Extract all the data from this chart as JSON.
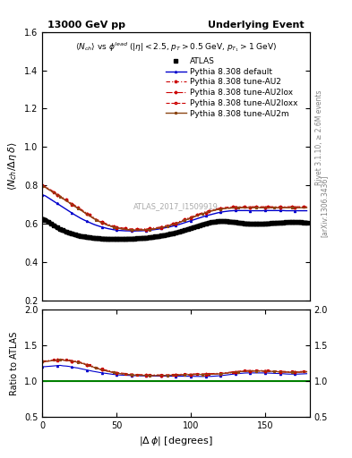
{
  "title_left": "13000 GeV pp",
  "title_right": "Underlying Event",
  "plot_title": "<N_{ch}> vs \\phi^{lead} (|\\eta| < 2.5, p_{T} > 0.5 GeV, p_{T_1} > 1 GeV)",
  "xlabel": "|\\Delta \\phi| [degrees]",
  "ylabel_main": "\\langle N_{ch} / \\Delta\\eta\\,d\\rangle",
  "ylabel_ratio": "Ratio to ATLAS",
  "right_label1": "Rivet 3.1.10, \\geq 2.6M events",
  "right_label2": "[arXiv:1306.3436]",
  "watermark": "ATLAS_2017_I1509919",
  "xlim": [
    0,
    180
  ],
  "ylim_main": [
    0.2,
    1.6
  ],
  "ylim_ratio": [
    0.5,
    2.0
  ],
  "yticks_main": [
    0.2,
    0.4,
    0.6,
    0.8,
    1.0,
    1.2,
    1.4,
    1.6
  ],
  "yticks_ratio": [
    0.5,
    1.0,
    1.5,
    2.0
  ],
  "xticks": [
    0,
    50,
    100,
    150
  ],
  "colors": {
    "ATLAS": "#000000",
    "default": "#0000ff",
    "AU2": "#cc0000",
    "AU2lox": "#cc0000",
    "AU2loxx": "#cc0000",
    "AU2m": "#8b4513"
  },
  "dphi": [
    0,
    2,
    4,
    6,
    8,
    10,
    12,
    14,
    16,
    18,
    20,
    22,
    24,
    26,
    28,
    30,
    32,
    34,
    36,
    38,
    40,
    42,
    44,
    46,
    48,
    50,
    52,
    54,
    56,
    58,
    60,
    62,
    64,
    66,
    68,
    70,
    72,
    74,
    76,
    78,
    80,
    82,
    84,
    86,
    88,
    90,
    92,
    94,
    96,
    98,
    100,
    102,
    104,
    106,
    108,
    110,
    112,
    114,
    116,
    118,
    120,
    122,
    124,
    126,
    128,
    130,
    132,
    134,
    136,
    138,
    140,
    142,
    144,
    146,
    148,
    150,
    152,
    154,
    156,
    158,
    160,
    162,
    164,
    166,
    168,
    170,
    172,
    174,
    176,
    178
  ],
  "ATLAS_y": [
    0.625,
    0.62,
    0.61,
    0.6,
    0.59,
    0.58,
    0.57,
    0.565,
    0.558,
    0.552,
    0.548,
    0.543,
    0.538,
    0.535,
    0.532,
    0.53,
    0.528,
    0.526,
    0.524,
    0.523,
    0.522,
    0.521,
    0.52,
    0.52,
    0.52,
    0.52,
    0.52,
    0.52,
    0.52,
    0.521,
    0.521,
    0.522,
    0.523,
    0.524,
    0.525,
    0.526,
    0.528,
    0.53,
    0.532,
    0.534,
    0.537,
    0.54,
    0.543,
    0.546,
    0.55,
    0.554,
    0.558,
    0.562,
    0.567,
    0.572,
    0.577,
    0.582,
    0.587,
    0.592,
    0.597,
    0.601,
    0.605,
    0.608,
    0.61,
    0.612,
    0.613,
    0.613,
    0.612,
    0.611,
    0.609,
    0.607,
    0.605,
    0.603,
    0.601,
    0.6,
    0.599,
    0.599,
    0.599,
    0.599,
    0.599,
    0.6,
    0.601,
    0.602,
    0.603,
    0.604,
    0.605,
    0.606,
    0.607,
    0.608,
    0.608,
    0.608,
    0.608,
    0.607,
    0.606,
    0.605
  ],
  "default_y": [
    0.75,
    0.745,
    0.735,
    0.725,
    0.715,
    0.705,
    0.695,
    0.685,
    0.675,
    0.665,
    0.655,
    0.645,
    0.636,
    0.627,
    0.619,
    0.612,
    0.605,
    0.598,
    0.592,
    0.587,
    0.582,
    0.578,
    0.574,
    0.571,
    0.568,
    0.566,
    0.564,
    0.563,
    0.562,
    0.562,
    0.561,
    0.561,
    0.562,
    0.562,
    0.563,
    0.564,
    0.565,
    0.567,
    0.569,
    0.571,
    0.574,
    0.577,
    0.58,
    0.583,
    0.587,
    0.591,
    0.595,
    0.6,
    0.605,
    0.61,
    0.615,
    0.62,
    0.625,
    0.63,
    0.635,
    0.64,
    0.644,
    0.648,
    0.652,
    0.656,
    0.659,
    0.662,
    0.664,
    0.666,
    0.667,
    0.668,
    0.668,
    0.668,
    0.668,
    0.668,
    0.667,
    0.667,
    0.667,
    0.667,
    0.667,
    0.668,
    0.668,
    0.668,
    0.668,
    0.668,
    0.668,
    0.668,
    0.667,
    0.667,
    0.667,
    0.667,
    0.667,
    0.667,
    0.667,
    0.667
  ],
  "AU2_y": [
    0.8,
    0.795,
    0.785,
    0.775,
    0.765,
    0.755,
    0.745,
    0.735,
    0.725,
    0.715,
    0.705,
    0.695,
    0.685,
    0.675,
    0.665,
    0.655,
    0.645,
    0.635,
    0.625,
    0.617,
    0.61,
    0.603,
    0.597,
    0.592,
    0.587,
    0.583,
    0.58,
    0.577,
    0.575,
    0.573,
    0.572,
    0.571,
    0.571,
    0.571,
    0.572,
    0.573,
    0.574,
    0.576,
    0.578,
    0.58,
    0.583,
    0.587,
    0.591,
    0.595,
    0.6,
    0.605,
    0.61,
    0.616,
    0.622,
    0.628,
    0.634,
    0.64,
    0.646,
    0.652,
    0.657,
    0.662,
    0.667,
    0.671,
    0.675,
    0.678,
    0.681,
    0.683,
    0.685,
    0.686,
    0.687,
    0.688,
    0.688,
    0.688,
    0.688,
    0.688,
    0.688,
    0.688,
    0.688,
    0.688,
    0.688,
    0.688,
    0.688,
    0.688,
    0.688,
    0.688,
    0.688,
    0.688,
    0.688,
    0.688,
    0.688,
    0.688,
    0.688,
    0.688,
    0.688,
    0.688
  ],
  "AU2lox_y": [
    0.795,
    0.79,
    0.78,
    0.77,
    0.76,
    0.75,
    0.74,
    0.73,
    0.72,
    0.71,
    0.7,
    0.69,
    0.68,
    0.67,
    0.66,
    0.65,
    0.64,
    0.63,
    0.62,
    0.612,
    0.605,
    0.598,
    0.592,
    0.587,
    0.582,
    0.578,
    0.575,
    0.572,
    0.57,
    0.568,
    0.567,
    0.566,
    0.566,
    0.566,
    0.567,
    0.568,
    0.569,
    0.571,
    0.573,
    0.576,
    0.579,
    0.582,
    0.586,
    0.59,
    0.595,
    0.6,
    0.605,
    0.611,
    0.617,
    0.623,
    0.629,
    0.635,
    0.641,
    0.647,
    0.652,
    0.657,
    0.662,
    0.666,
    0.67,
    0.673,
    0.676,
    0.678,
    0.68,
    0.681,
    0.682,
    0.683,
    0.683,
    0.683,
    0.683,
    0.683,
    0.683,
    0.683,
    0.683,
    0.683,
    0.683,
    0.683,
    0.683,
    0.683,
    0.683,
    0.683,
    0.683,
    0.683,
    0.683,
    0.683,
    0.683,
    0.683,
    0.683,
    0.683,
    0.683,
    0.683
  ],
  "AU2loxx_y": [
    0.795,
    0.79,
    0.78,
    0.77,
    0.76,
    0.75,
    0.74,
    0.73,
    0.72,
    0.71,
    0.7,
    0.69,
    0.68,
    0.67,
    0.66,
    0.65,
    0.64,
    0.63,
    0.62,
    0.612,
    0.605,
    0.598,
    0.592,
    0.587,
    0.582,
    0.578,
    0.575,
    0.572,
    0.57,
    0.568,
    0.567,
    0.566,
    0.566,
    0.566,
    0.567,
    0.568,
    0.569,
    0.571,
    0.573,
    0.576,
    0.579,
    0.582,
    0.586,
    0.59,
    0.595,
    0.6,
    0.605,
    0.611,
    0.617,
    0.623,
    0.629,
    0.635,
    0.641,
    0.647,
    0.652,
    0.657,
    0.662,
    0.666,
    0.67,
    0.673,
    0.676,
    0.678,
    0.68,
    0.681,
    0.682,
    0.683,
    0.683,
    0.683,
    0.683,
    0.683,
    0.683,
    0.683,
    0.683,
    0.683,
    0.683,
    0.683,
    0.683,
    0.683,
    0.683,
    0.683,
    0.683,
    0.683,
    0.683,
    0.683,
    0.683,
    0.683,
    0.683,
    0.683,
    0.683,
    0.683
  ],
  "AU2m_y": [
    0.795,
    0.79,
    0.78,
    0.77,
    0.76,
    0.75,
    0.74,
    0.73,
    0.72,
    0.71,
    0.7,
    0.69,
    0.68,
    0.67,
    0.66,
    0.65,
    0.64,
    0.63,
    0.62,
    0.612,
    0.605,
    0.598,
    0.592,
    0.587,
    0.582,
    0.578,
    0.575,
    0.572,
    0.57,
    0.568,
    0.567,
    0.566,
    0.566,
    0.566,
    0.567,
    0.568,
    0.569,
    0.571,
    0.573,
    0.576,
    0.579,
    0.582,
    0.586,
    0.59,
    0.595,
    0.6,
    0.605,
    0.611,
    0.617,
    0.623,
    0.629,
    0.635,
    0.641,
    0.647,
    0.652,
    0.657,
    0.662,
    0.666,
    0.67,
    0.673,
    0.676,
    0.678,
    0.68,
    0.681,
    0.682,
    0.683,
    0.683,
    0.683,
    0.683,
    0.683,
    0.683,
    0.683,
    0.683,
    0.683,
    0.683,
    0.683,
    0.683,
    0.683,
    0.683,
    0.683,
    0.683,
    0.683,
    0.683,
    0.683,
    0.683,
    0.683,
    0.683,
    0.683,
    0.683,
    0.683
  ],
  "legend_fontsize": 7,
  "tick_fontsize": 7,
  "label_fontsize": 8
}
